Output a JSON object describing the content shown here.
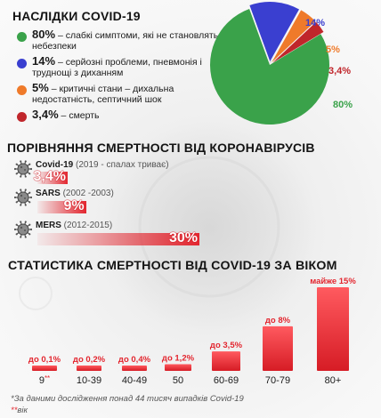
{
  "sections": {
    "consequences_title": "НАСЛІДКИ COVID-19",
    "mortality_title": "ПОРІВНЯННЯ СМЕРТНОСТІ ВІД КОРОНАВІРУСІВ",
    "age_title": "СТАТИСТИКА СМЕРТНОСТІ ВІД COVID-19 ЗА ВІКОМ"
  },
  "legend": [
    {
      "pct": "80%",
      "text": " – слабкі симптоми, які не становлять небезпеки",
      "color": "#3aa24a"
    },
    {
      "pct": "14%",
      "text": " – серйозні проблеми, пневмонія і труднощі з диханням",
      "color": "#3a3fd0"
    },
    {
      "pct": "5%",
      "text": " – критичні стани – дихальна недостатність, септичний шок",
      "color": "#ef7a2a"
    },
    {
      "pct": "3,4%",
      "text": " – смерть",
      "color": "#c0262b"
    }
  ],
  "chart_data": [
    {
      "type": "pie",
      "labels": [
        "80%",
        "14%",
        "5%",
        "3,4%"
      ],
      "values": [
        80,
        14,
        5,
        3.4
      ],
      "colors": [
        "#3aa24a",
        "#3a3fd0",
        "#ef7a2a",
        "#c0262b"
      ]
    },
    {
      "type": "bar",
      "orientation": "horizontal",
      "categories": [
        "Covid-19",
        "SARS",
        "MERS"
      ],
      "periods": [
        "(2019 - спалах триває)",
        "(2002 -2003)",
        "(2012-2015)"
      ],
      "values": [
        3.4,
        9,
        30
      ],
      "value_labels": [
        "3,4%",
        "9%",
        "30%"
      ],
      "color": "#e3262f"
    },
    {
      "type": "bar",
      "categories": [
        "9",
        "10-39",
        "40-49",
        "50",
        "60-69",
        "70-79",
        "80+"
      ],
      "first_category_marker": "**",
      "values": [
        0.1,
        0.2,
        0.4,
        1.2,
        3.5,
        8,
        15
      ],
      "value_labels": [
        "до 0,1%",
        "до 0,2%",
        "до 0,4%",
        "до 1,2%",
        "до 3,5%",
        "до 8%",
        "майже 15%"
      ],
      "color": "#e3262f"
    }
  ],
  "footnotes": {
    "source": "*За даними дослідження понад 44 тисяч випадків Covid-19",
    "marker": "**",
    "marker_text": "вік"
  }
}
